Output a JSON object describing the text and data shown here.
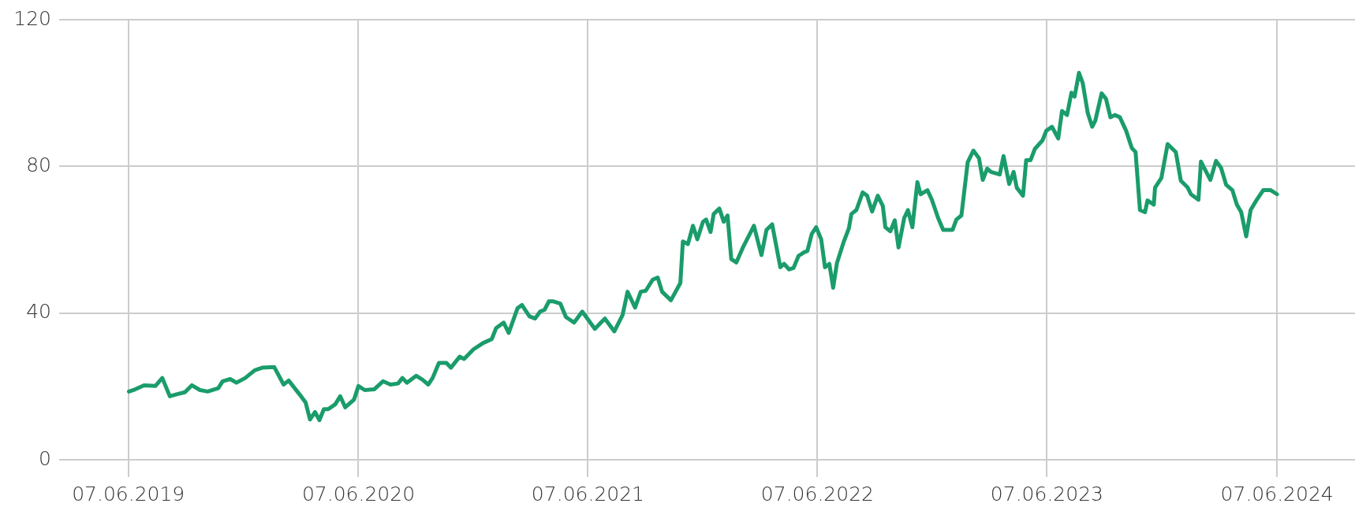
{
  "chart_data": {
    "type": "line",
    "xlim": [
      "2019-02-17",
      "2024-10-09"
    ],
    "xticks": [
      {
        "value": "2019-06-07",
        "label": "07.06.2019"
      },
      {
        "value": "2020-06-07",
        "label": "07.06.2020"
      },
      {
        "value": "2021-06-07",
        "label": "07.06.2021"
      },
      {
        "value": "2022-06-07",
        "label": "07.06.2022"
      },
      {
        "value": "2023-06-07",
        "label": "07.06.2023"
      },
      {
        "value": "2024-06-07",
        "label": "07.06.2024"
      }
    ],
    "ylim": [
      0,
      120
    ],
    "yticks": [
      0,
      40,
      80,
      120
    ],
    "grid": true,
    "legend": false,
    "marker": "none",
    "line_style": "solid",
    "series": [
      {
        "color": "#1a9c6b",
        "x": [
          "2019-06-08",
          "2019-06-18",
          "2019-07-02",
          "2019-07-20",
          "2019-07-31",
          "2019-08-12",
          "2019-08-24",
          "2019-09-05",
          "2019-09-16",
          "2019-09-29",
          "2019-10-11",
          "2019-10-28",
          "2019-11-04",
          "2019-11-16",
          "2019-11-26",
          "2019-12-10",
          "2019-12-25",
          "2020-01-06",
          "2020-01-25",
          "2020-02-09",
          "2020-02-17",
          "2020-03-05",
          "2020-03-15",
          "2020-03-22",
          "2020-03-30",
          "2020-04-06",
          "2020-04-13",
          "2020-04-20",
          "2020-05-01",
          "2020-05-09",
          "2020-05-17",
          "2020-05-31",
          "2020-06-07",
          "2020-06-17",
          "2020-07-02",
          "2020-07-16",
          "2020-07-28",
          "2020-08-09",
          "2020-08-16",
          "2020-08-23",
          "2020-09-07",
          "2020-09-17",
          "2020-09-26",
          "2020-10-03",
          "2020-10-13",
          "2020-10-25",
          "2020-11-01",
          "2020-11-15",
          "2020-11-22",
          "2020-12-07",
          "2020-12-22",
          "2021-01-05",
          "2021-01-12",
          "2021-01-24",
          "2021-02-01",
          "2021-02-15",
          "2021-02-22",
          "2021-03-06",
          "2021-03-15",
          "2021-03-23",
          "2021-03-30",
          "2021-04-06",
          "2021-04-13",
          "2021-04-24",
          "2021-05-03",
          "2021-05-16",
          "2021-05-29",
          "2021-06-18",
          "2021-07-04",
          "2021-07-19",
          "2021-08-01",
          "2021-08-09",
          "2021-08-21",
          "2021-08-30",
          "2021-09-07",
          "2021-09-18",
          "2021-09-26",
          "2021-10-03",
          "2021-10-17",
          "2021-11-01",
          "2021-11-05",
          "2021-11-13",
          "2021-11-21",
          "2021-11-28",
          "2021-12-07",
          "2021-12-12",
          "2021-12-19",
          "2021-12-24",
          "2022-01-02",
          "2022-01-09",
          "2022-01-15",
          "2022-01-21",
          "2022-01-29",
          "2022-02-08",
          "2022-02-26",
          "2022-03-10",
          "2022-03-18",
          "2022-03-27",
          "2022-04-09",
          "2022-04-15",
          "2022-04-23",
          "2022-04-30",
          "2022-05-08",
          "2022-05-17",
          "2022-05-22",
          "2022-05-29",
          "2022-06-05",
          "2022-06-13",
          "2022-06-19",
          "2022-06-26",
          "2022-07-02",
          "2022-07-08",
          "2022-07-19",
          "2022-07-27",
          "2022-07-31",
          "2022-08-08",
          "2022-08-18",
          "2022-08-25",
          "2022-09-02",
          "2022-09-11",
          "2022-09-19",
          "2022-09-23",
          "2022-10-01",
          "2022-10-08",
          "2022-10-14",
          "2022-10-23",
          "2022-10-29",
          "2022-11-05",
          "2022-11-13",
          "2022-11-18",
          "2022-11-29",
          "2022-12-06",
          "2022-12-16",
          "2022-12-24",
          "2023-01-08",
          "2023-01-14",
          "2023-01-22",
          "2023-02-01",
          "2023-02-10",
          "2023-02-19",
          "2023-02-25",
          "2023-03-04",
          "2023-03-10",
          "2023-03-24",
          "2023-03-30",
          "2023-04-08",
          "2023-04-15",
          "2023-04-20",
          "2023-04-30",
          "2023-05-05",
          "2023-05-12",
          "2023-05-19",
          "2023-05-31",
          "2023-06-06",
          "2023-06-15",
          "2023-06-25",
          "2023-07-01",
          "2023-07-09",
          "2023-07-16",
          "2023-07-21",
          "2023-07-28",
          "2023-08-03",
          "2023-08-11",
          "2023-08-18",
          "2023-08-23",
          "2023-09-02",
          "2023-09-09",
          "2023-09-16",
          "2023-09-23",
          "2023-10-01",
          "2023-10-11",
          "2023-10-20",
          "2023-10-26",
          "2023-11-02",
          "2023-11-10",
          "2023-11-14",
          "2023-11-24",
          "2023-11-26",
          "2023-12-06",
          "2023-12-16",
          "2023-12-29",
          "2024-01-06",
          "2024-01-17",
          "2024-01-22",
          "2024-02-03",
          "2024-02-07",
          "2024-02-22",
          "2024-03-02",
          "2024-03-10",
          "2024-03-18",
          "2024-03-28",
          "2024-04-04",
          "2024-04-11",
          "2024-04-19",
          "2024-04-26",
          "2024-05-05",
          "2024-05-16",
          "2024-05-28",
          "2024-06-07"
        ],
        "values": [
          18.6,
          19.2,
          20.3,
          20.1,
          22.3,
          17.3,
          17.9,
          18.4,
          20.3,
          19,
          18.6,
          19.5,
          21.4,
          22,
          21,
          22.3,
          24.4,
          25.1,
          25.3,
          20.5,
          21.6,
          17.9,
          15.6,
          11,
          13,
          10.8,
          13.8,
          13.8,
          15.1,
          17.3,
          14.3,
          16.4,
          20.1,
          19,
          19.2,
          21.4,
          20.5,
          20.8,
          22.3,
          21,
          22.9,
          21.8,
          20.5,
          22.3,
          26.4,
          26.4,
          25.1,
          28.1,
          27.5,
          30.1,
          31.8,
          32.9,
          35.9,
          37.4,
          34.6,
          41.3,
          42.2,
          39.1,
          38.5,
          40.4,
          40.9,
          43.2,
          43.2,
          42.6,
          38.9,
          37.4,
          40.4,
          35.7,
          38.5,
          35,
          39.4,
          45.8,
          41.5,
          45.8,
          46.1,
          49.1,
          49.7,
          45.8,
          43.5,
          48.2,
          59.5,
          58.8,
          63.8,
          60.1,
          64.9,
          65.5,
          62.1,
          67,
          68.5,
          64.9,
          66.6,
          54.7,
          53.8,
          57.7,
          63.8,
          55.8,
          62.7,
          64.2,
          52.5,
          53.4,
          51.9,
          52.3,
          55.6,
          56.6,
          56.9,
          61.6,
          63.4,
          60.1,
          52.5,
          53.4,
          46.9,
          53.6,
          59.5,
          63.1,
          67,
          68.1,
          72.9,
          72,
          67.7,
          72,
          69.2,
          63.4,
          62.3,
          65.3,
          57.9,
          65.9,
          68.1,
          63.4,
          75.7,
          72.4,
          73.5,
          70.9,
          65.9,
          62.7,
          62.7,
          65.5,
          66.6,
          81.1,
          84.3,
          82.2,
          76.3,
          79.4,
          78.5,
          77.8,
          82.8,
          75.2,
          78.5,
          74.2,
          72,
          81.7,
          81.7,
          84.8,
          87.1,
          89.7,
          90.8,
          87.6,
          95.1,
          94,
          100.1,
          99,
          105.5,
          102.7,
          94.5,
          90.8,
          92.5,
          99.9,
          98.4,
          93.4,
          94,
          93.4,
          89.7,
          85,
          83.9,
          68.1,
          67.5,
          70.7,
          69.6,
          74.2,
          76.8,
          86.1,
          83.9,
          76.1,
          74.2,
          72.4,
          70.9,
          81.3,
          76.3,
          81.5,
          79.6,
          75,
          73.5,
          69.6,
          67.5,
          60.9,
          68.1,
          70.7,
          73.5,
          73.5,
          72.4
        ]
      }
    ]
  }
}
